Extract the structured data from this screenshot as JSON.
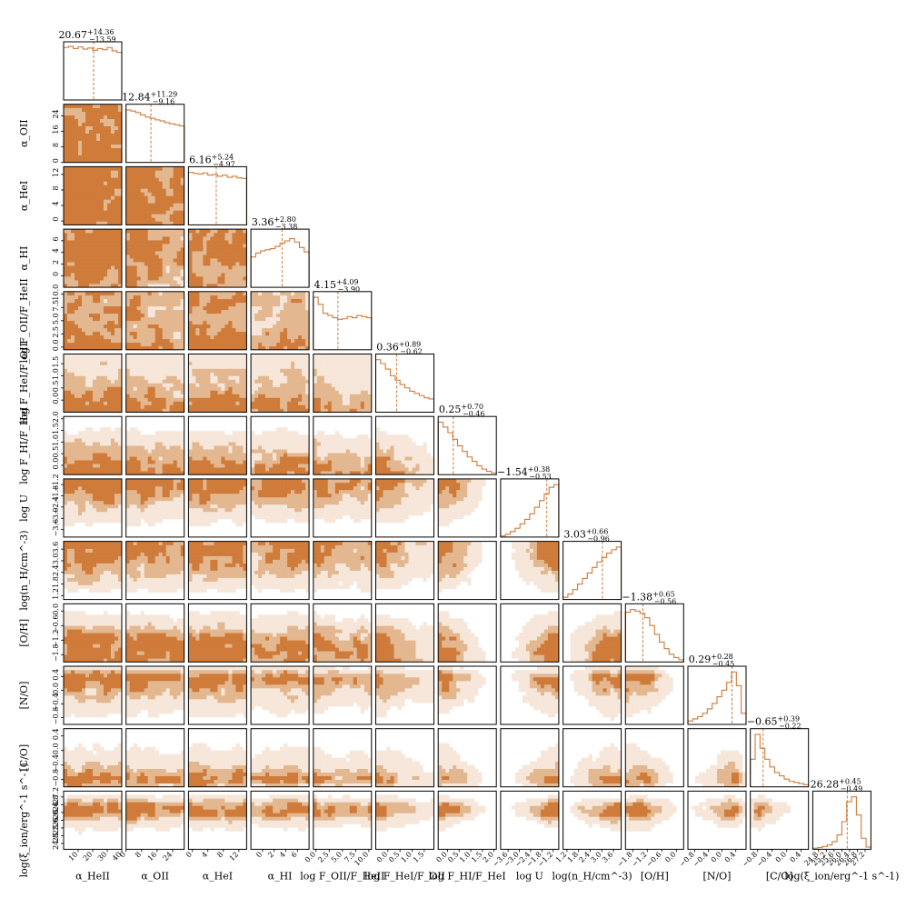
{
  "chart_data": {
    "type": "corner",
    "colors": {
      "dark": "#cf7b3a",
      "mid": "#e3b78f",
      "light": "#f6e7da",
      "line": "#cf7b3a"
    },
    "params": [
      {
        "id": "alpha_HeII",
        "label": "α_HeII",
        "stat": "20.67",
        "up": "+14.36",
        "lo": "−13.59",
        "range": [
          0,
          40
        ],
        "ticks": [
          "10",
          "20",
          "30",
          "40"
        ],
        "tickvals": [
          10,
          20,
          30,
          40
        ],
        "median": 20.67,
        "hist": [
          0.95,
          0.97,
          0.93,
          0.96,
          0.92,
          0.94,
          0.9,
          0.93,
          0.91,
          0.95,
          0.89,
          0.86
        ]
      },
      {
        "id": "alpha_OII",
        "label": "α_OII",
        "stat": "12.84",
        "up": "+11.29",
        "lo": "−9.16",
        "range": [
          0,
          30
        ],
        "ticks": [
          "0",
          "8",
          "16",
          "24"
        ],
        "tickvals": [
          0,
          8,
          16,
          24
        ],
        "median": 12.84,
        "hist": [
          0.95,
          0.93,
          0.9,
          0.86,
          0.82,
          0.8,
          0.77,
          0.75,
          0.72,
          0.7,
          0.68,
          0.66
        ]
      },
      {
        "id": "alpha_HeI",
        "label": "α_HeI",
        "stat": "6.16",
        "up": "+5.24",
        "lo": "−4.97",
        "range": [
          -1,
          14
        ],
        "ticks": [
          "0",
          "4",
          "8",
          "12"
        ],
        "tickvals": [
          0,
          4,
          8,
          12
        ],
        "median": 6.16,
        "hist": [
          0.95,
          0.93,
          0.92,
          0.94,
          0.9,
          0.91,
          0.88,
          0.9,
          0.86,
          0.88,
          0.85,
          0.84
        ]
      },
      {
        "id": "alpha_HI",
        "label": "α_HI",
        "stat": "3.36",
        "up": "+2.80",
        "lo": "−3.38",
        "range": [
          -2,
          8
        ],
        "ticks": [
          "0",
          "2",
          "4",
          "6"
        ],
        "tickvals": [
          0,
          2,
          4,
          6
        ],
        "median": 3.36,
        "hist": [
          0.55,
          0.62,
          0.66,
          0.68,
          0.7,
          0.74,
          0.8,
          0.84,
          0.88,
          0.82,
          0.72,
          0.64
        ]
      },
      {
        "id": "log_FOII_FHeII",
        "label": "log F_OII/F_HeII",
        "stat": "4.15",
        "up": "+4.09",
        "lo": "−3.90",
        "range": [
          -0.5,
          10.5
        ],
        "ticks": [
          "0.0",
          "2.5",
          "5.0",
          "7.5",
          "10.0"
        ],
        "tickvals": [
          0,
          2.5,
          5,
          7.5,
          10
        ],
        "median": 4.15,
        "hist": [
          0.95,
          0.82,
          0.66,
          0.62,
          0.58,
          0.55,
          0.56,
          0.6,
          0.58,
          0.62,
          0.6,
          0.58
        ]
      },
      {
        "id": "log_FHeI_FOII",
        "label": "log F_HeI/F_OII",
        "stat": "0.36",
        "up": "+0.89",
        "lo": "−0.62",
        "range": [
          -0.5,
          1.9
        ],
        "ticks": [
          "0.0",
          "0.5",
          "1.0",
          "1.5"
        ],
        "tickvals": [
          0,
          0.5,
          1,
          1.5
        ],
        "median": 0.36,
        "hist": [
          0.95,
          0.88,
          0.78,
          0.66,
          0.58,
          0.5,
          0.44,
          0.38,
          0.34,
          0.3,
          0.26,
          0.24
        ]
      },
      {
        "id": "log_FHI_FHeI",
        "label": "log F_HI/F_HeI",
        "stat": "0.25",
        "up": "+0.70",
        "lo": "−0.46",
        "range": [
          -0.4,
          2.1
        ],
        "ticks": [
          "0.0",
          "0.5",
          "1.0",
          "1.5",
          "2.0"
        ],
        "tickvals": [
          0,
          0.5,
          1,
          1.5,
          2
        ],
        "median": 0.25,
        "hist": [
          0.95,
          0.86,
          0.76,
          0.64,
          0.52,
          0.42,
          0.32,
          0.24,
          0.16,
          0.1,
          0.06,
          0.03
        ]
      },
      {
        "id": "logU",
        "label": "log U",
        "stat": "−1.54",
        "up": "+0.38",
        "lo": "−0.53",
        "range": [
          -4.0,
          -0.9
        ],
        "ticks": [
          "−3.6",
          "−3.0",
          "−2.4",
          "−1.8",
          "−1.2"
        ],
        "tickvals": [
          -3.6,
          -3.0,
          -2.4,
          -1.8,
          -1.2
        ],
        "median": -1.54,
        "hist": [
          0.02,
          0.05,
          0.1,
          0.16,
          0.24,
          0.32,
          0.42,
          0.54,
          0.66,
          0.78,
          0.9,
          0.95
        ]
      },
      {
        "id": "log_nH",
        "label": "log(n_H/cm^-3)",
        "stat": "3.03",
        "up": "+0.66",
        "lo": "−0.96",
        "range": [
          1.0,
          4.0
        ],
        "ticks": [
          "1.2",
          "1.8",
          "2.4",
          "3.0",
          "3.6"
        ],
        "tickvals": [
          1.2,
          1.8,
          2.4,
          3.0,
          3.6
        ],
        "median": 3.03,
        "hist": [
          0.04,
          0.1,
          0.18,
          0.28,
          0.38,
          0.48,
          0.58,
          0.68,
          0.76,
          0.84,
          0.9,
          0.95
        ]
      },
      {
        "id": "OH",
        "label": "[O/H]",
        "stat": "−1.38",
        "up": "+0.65",
        "lo": "−0.56",
        "range": [
          -2.1,
          0.3
        ],
        "ticks": [
          "−1.8",
          "−1.2",
          "−0.6",
          "0.0"
        ],
        "tickvals": [
          -1.8,
          -1.2,
          -0.6,
          0.0
        ],
        "median": -1.38,
        "hist": [
          0.9,
          0.95,
          0.92,
          0.88,
          0.8,
          0.66,
          0.5,
          0.36,
          0.24,
          0.14,
          0.08,
          0.04
        ]
      },
      {
        "id": "NO",
        "label": "[N/O]",
        "stat": "0.29",
        "up": "+0.28",
        "lo": "−0.45",
        "range": [
          -1.0,
          0.7
        ],
        "ticks": [
          "−0.8",
          "−0.4",
          "0.0",
          "0.4"
        ],
        "tickvals": [
          -0.8,
          -0.4,
          0.0,
          0.4
        ],
        "median": 0.29,
        "hist": [
          0.06,
          0.1,
          0.14,
          0.2,
          0.28,
          0.38,
          0.5,
          0.62,
          0.76,
          0.95,
          0.7,
          0.2
        ]
      },
      {
        "id": "CO",
        "label": "[C/O]",
        "stat": "−0.65",
        "up": "+0.39",
        "lo": "−0.22",
        "range": [
          -1.0,
          0.6
        ],
        "ticks": [
          "−0.8",
          "−0.4",
          "0.0",
          "0.4"
        ],
        "tickvals": [
          -0.8,
          -0.4,
          0.0,
          0.4
        ],
        "median": -0.65,
        "hist": [
          0.5,
          0.95,
          0.7,
          0.5,
          0.36,
          0.26,
          0.2,
          0.14,
          0.1,
          0.08,
          0.06,
          0.04
        ]
      },
      {
        "id": "log_xi_ion",
        "label": "log(ξ_ion/erg^-1 s^-1)",
        "stat": "26.28",
        "up": "+0.45",
        "lo": "−0.49",
        "range": [
          24.5,
          27.5
        ],
        "ticks": [
          "24.8",
          "25.2",
          "25.6",
          "26.0",
          "26.4",
          "26.8",
          "27.2"
        ],
        "tickvals": [
          24.8,
          25.2,
          25.6,
          26.0,
          26.4,
          26.8,
          27.2
        ],
        "median": 26.28,
        "hist": [
          0.02,
          0.03,
          0.05,
          0.08,
          0.14,
          0.26,
          0.5,
          0.86,
          0.95,
          0.62,
          0.2,
          0.04
        ]
      }
    ]
  }
}
